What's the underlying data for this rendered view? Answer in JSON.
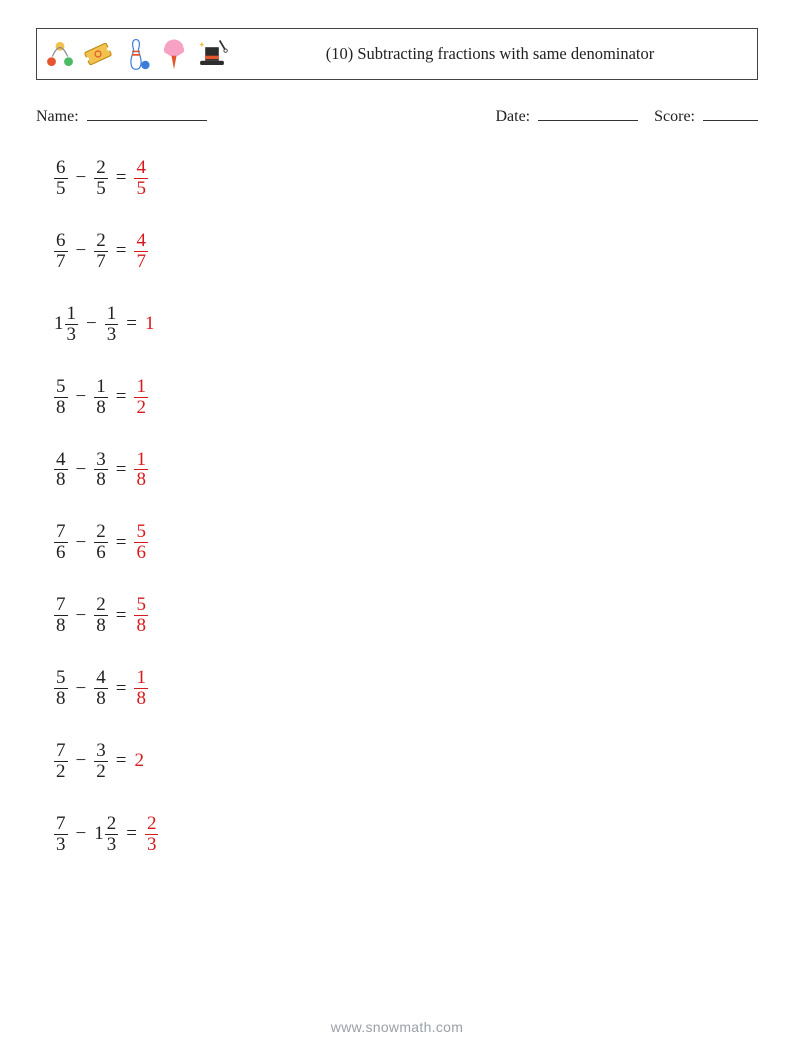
{
  "header": {
    "title": "(10) Subtracting fractions with same denominator",
    "title_fontsize": 16.5,
    "border_color": "#444444"
  },
  "meta": {
    "name_label": "Name:",
    "date_label": "Date:",
    "score_label": "Score:",
    "fontsize": 16
  },
  "colors": {
    "text": "#222222",
    "answer": "#d7191c",
    "background": "#ffffff",
    "footer": "#9aa0a6",
    "fraction_bar": "#222222"
  },
  "typography": {
    "body_font": "Georgia, 'Times New Roman', serif",
    "problem_fontsize": 19
  },
  "icons": [
    {
      "name": "juggling-balls",
      "colors": [
        "#e4572e",
        "#4cb963",
        "#f2c14e"
      ]
    },
    {
      "name": "ticket",
      "colors": [
        "#f2c14e",
        "#e4572e"
      ]
    },
    {
      "name": "bowling-pin",
      "colors": [
        "#3b7dd8",
        "#e4572e",
        "#ffffff"
      ]
    },
    {
      "name": "cotton-candy",
      "colors": [
        "#f7a1c4",
        "#e4572e"
      ]
    },
    {
      "name": "magic-hat",
      "colors": [
        "#2d2d2d",
        "#e4572e",
        "#f2c14e"
      ]
    }
  ],
  "problems": [
    {
      "left": {
        "whole": null,
        "num": "6",
        "den": "5"
      },
      "op": "−",
      "right": {
        "whole": null,
        "num": "2",
        "den": "5"
      },
      "answer": {
        "whole": null,
        "num": "4",
        "den": "5"
      }
    },
    {
      "left": {
        "whole": null,
        "num": "6",
        "den": "7"
      },
      "op": "−",
      "right": {
        "whole": null,
        "num": "2",
        "den": "7"
      },
      "answer": {
        "whole": null,
        "num": "4",
        "den": "7"
      }
    },
    {
      "left": {
        "whole": "1",
        "num": "1",
        "den": "3"
      },
      "op": "−",
      "right": {
        "whole": null,
        "num": "1",
        "den": "3"
      },
      "answer": {
        "whole": "1",
        "num": null,
        "den": null
      }
    },
    {
      "left": {
        "whole": null,
        "num": "5",
        "den": "8"
      },
      "op": "−",
      "right": {
        "whole": null,
        "num": "1",
        "den": "8"
      },
      "answer": {
        "whole": null,
        "num": "1",
        "den": "2"
      }
    },
    {
      "left": {
        "whole": null,
        "num": "4",
        "den": "8"
      },
      "op": "−",
      "right": {
        "whole": null,
        "num": "3",
        "den": "8"
      },
      "answer": {
        "whole": null,
        "num": "1",
        "den": "8"
      }
    },
    {
      "left": {
        "whole": null,
        "num": "7",
        "den": "6"
      },
      "op": "−",
      "right": {
        "whole": null,
        "num": "2",
        "den": "6"
      },
      "answer": {
        "whole": null,
        "num": "5",
        "den": "6"
      }
    },
    {
      "left": {
        "whole": null,
        "num": "7",
        "den": "8"
      },
      "op": "−",
      "right": {
        "whole": null,
        "num": "2",
        "den": "8"
      },
      "answer": {
        "whole": null,
        "num": "5",
        "den": "8"
      }
    },
    {
      "left": {
        "whole": null,
        "num": "5",
        "den": "8"
      },
      "op": "−",
      "right": {
        "whole": null,
        "num": "4",
        "den": "8"
      },
      "answer": {
        "whole": null,
        "num": "1",
        "den": "8"
      }
    },
    {
      "left": {
        "whole": null,
        "num": "7",
        "den": "2"
      },
      "op": "−",
      "right": {
        "whole": null,
        "num": "3",
        "den": "2"
      },
      "answer": {
        "whole": "2",
        "num": null,
        "den": null
      }
    },
    {
      "left": {
        "whole": null,
        "num": "7",
        "den": "3"
      },
      "op": "−",
      "right": {
        "whole": "1",
        "num": "2",
        "den": "3"
      },
      "answer": {
        "whole": null,
        "num": "2",
        "den": "3"
      }
    }
  ],
  "footer": {
    "text": "www.snowmath.com"
  }
}
